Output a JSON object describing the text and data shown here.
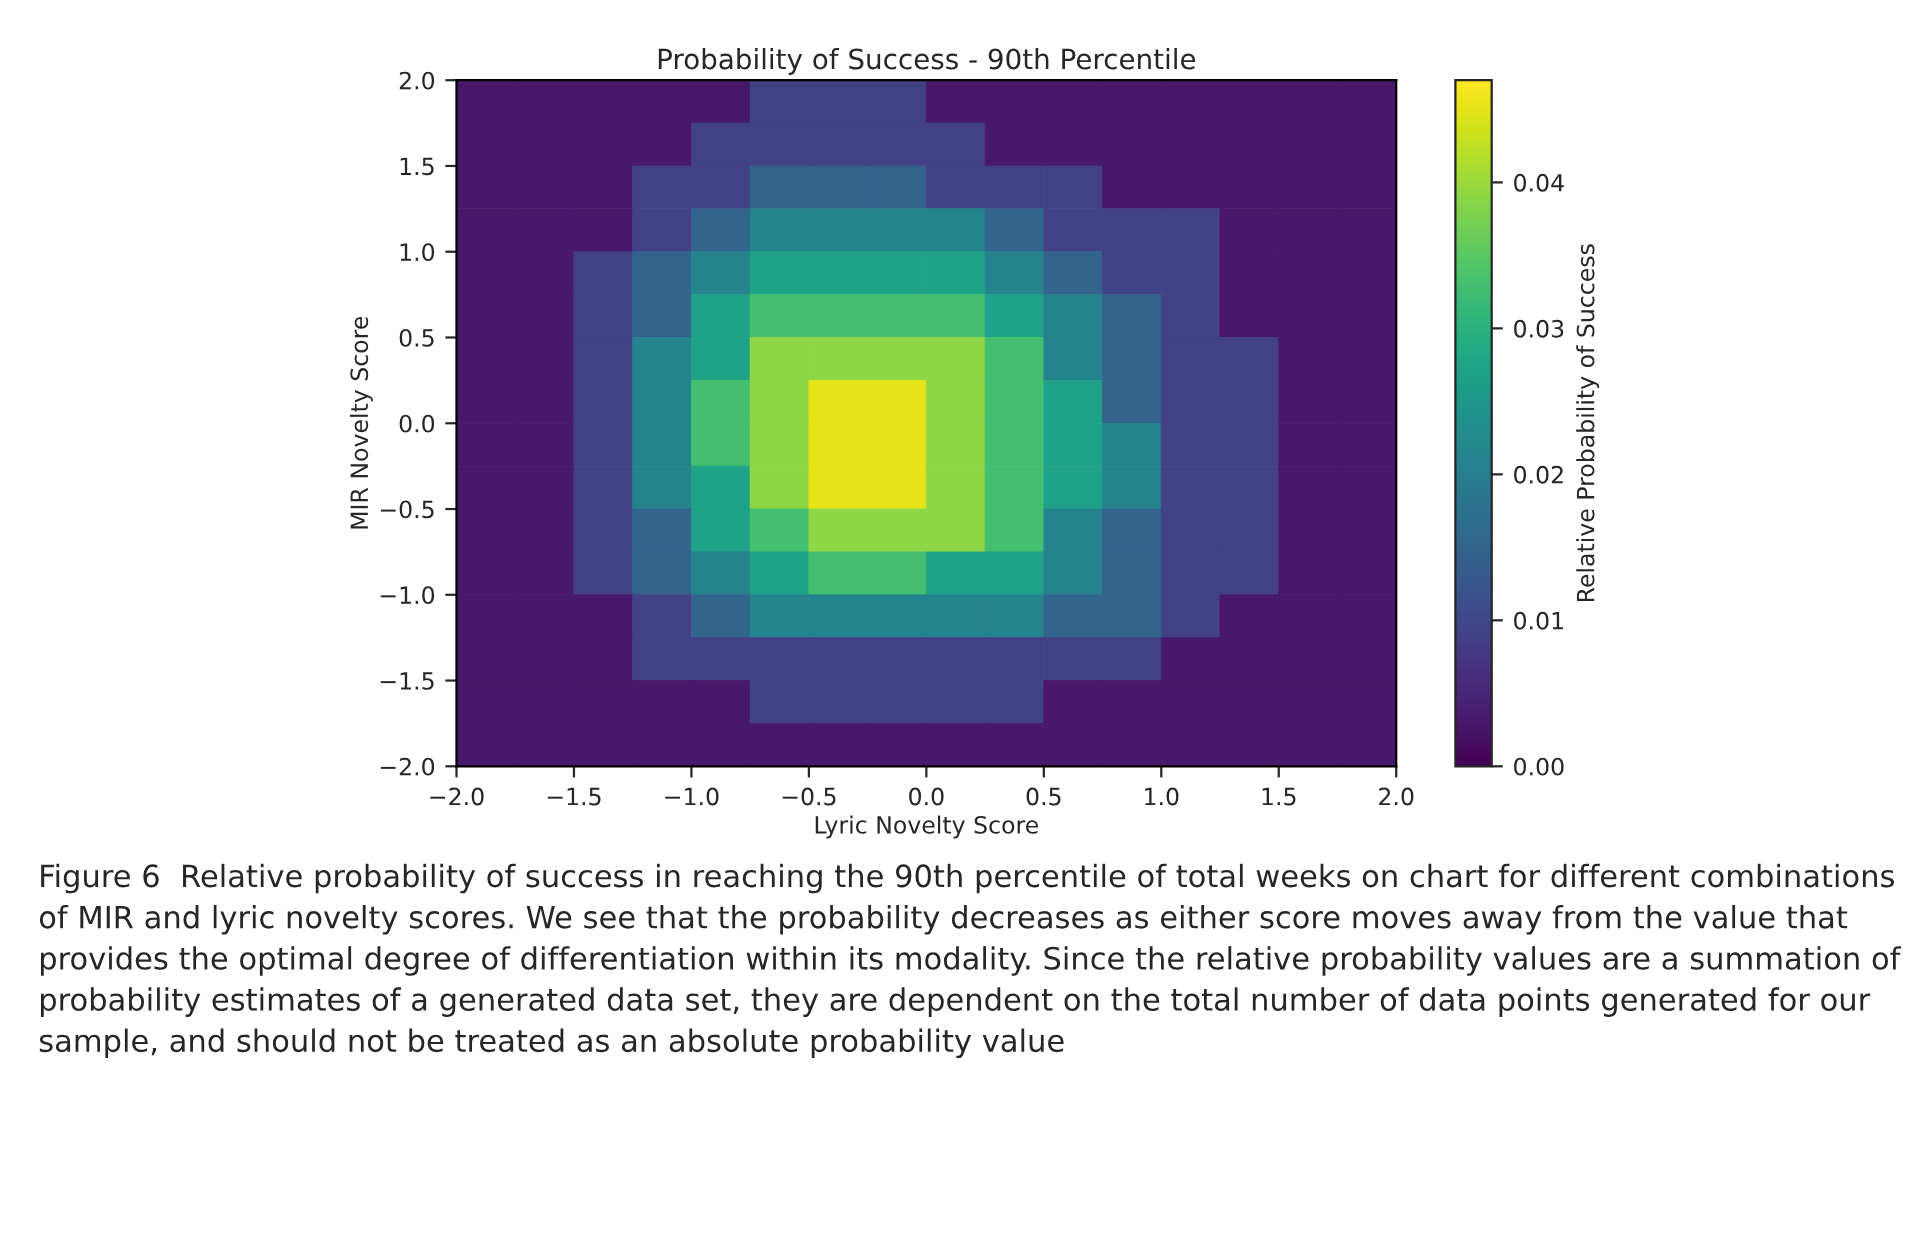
{
  "chart_data": {
    "type": "heatmap",
    "title": "Probability of Success - 90th Percentile",
    "xlabel": "Lyric Novelty Score",
    "ylabel": "MIR Novelty Score",
    "clabel": "Relative Probability of Success",
    "x": [
      -1.875,
      -1.625,
      -1.375,
      -1.125,
      -0.875,
      -0.625,
      -0.375,
      -0.125,
      0.125,
      0.375,
      0.625,
      0.875,
      1.125,
      1.375,
      1.625,
      1.875
    ],
    "y": [
      1.875,
      1.625,
      1.375,
      1.125,
      0.875,
      0.625,
      0.375,
      0.125,
      -0.125,
      -0.375,
      -0.625,
      -0.875,
      -1.125,
      -1.375,
      -1.625,
      -1.875
    ],
    "xlim": [
      -2,
      2
    ],
    "ylim": [
      -2,
      2
    ],
    "xticks": [
      {
        "value": -2,
        "label": "−2.0"
      },
      {
        "value": -1.5,
        "label": "−1.5"
      },
      {
        "value": -1,
        "label": "−1.0"
      },
      {
        "value": -0.5,
        "label": "−0.5"
      },
      {
        "value": 0,
        "label": "0.0"
      },
      {
        "value": 0.5,
        "label": "0.5"
      },
      {
        "value": 1,
        "label": "1.0"
      },
      {
        "value": 1.5,
        "label": "1.5"
      },
      {
        "value": 2,
        "label": "2.0"
      }
    ],
    "yticks": [
      {
        "value": -2,
        "label": "−2.0"
      },
      {
        "value": -1.5,
        "label": "−1.5"
      },
      {
        "value": -1,
        "label": "−1.0"
      },
      {
        "value": -0.5,
        "label": "−0.5"
      },
      {
        "value": 0,
        "label": "0.0"
      },
      {
        "value": 0.5,
        "label": "0.5"
      },
      {
        "value": 1,
        "label": "1.0"
      },
      {
        "value": 1.5,
        "label": "1.5"
      },
      {
        "value": 2,
        "label": "2.0"
      }
    ],
    "clim": [
      0,
      0.047
    ],
    "cticks": [
      {
        "value": 0,
        "label": "0.00"
      },
      {
        "value": 0.01,
        "label": "0.01"
      },
      {
        "value": 0.02,
        "label": "0.02"
      },
      {
        "value": 0.03,
        "label": "0.03"
      },
      {
        "value": 0.04,
        "label": "0.04"
      }
    ],
    "cells": [
      [
        0.003,
        0.003,
        0.003,
        0.003,
        0.003,
        0.009,
        0.009,
        0.009,
        0.003,
        0.003,
        0.003,
        0.003,
        0.003,
        0.003,
        0.003,
        0.003
      ],
      [
        0.003,
        0.003,
        0.003,
        0.003,
        0.009,
        0.009,
        0.009,
        0.009,
        0.009,
        0.003,
        0.003,
        0.003,
        0.003,
        0.003,
        0.003,
        0.003
      ],
      [
        0.003,
        0.003,
        0.003,
        0.009,
        0.009,
        0.015,
        0.015,
        0.015,
        0.009,
        0.009,
        0.009,
        0.003,
        0.003,
        0.003,
        0.003,
        0.003
      ],
      [
        0.003,
        0.003,
        0.003,
        0.009,
        0.015,
        0.021,
        0.021,
        0.021,
        0.021,
        0.015,
        0.009,
        0.009,
        0.009,
        0.003,
        0.003,
        0.003
      ],
      [
        0.003,
        0.003,
        0.009,
        0.015,
        0.021,
        0.027,
        0.027,
        0.027,
        0.027,
        0.021,
        0.015,
        0.009,
        0.009,
        0.003,
        0.003,
        0.003
      ],
      [
        0.003,
        0.003,
        0.009,
        0.015,
        0.027,
        0.033,
        0.033,
        0.033,
        0.033,
        0.027,
        0.021,
        0.015,
        0.009,
        0.003,
        0.003,
        0.003
      ],
      [
        0.003,
        0.003,
        0.009,
        0.021,
        0.027,
        0.039,
        0.039,
        0.039,
        0.039,
        0.033,
        0.021,
        0.015,
        0.009,
        0.009,
        0.003,
        0.003
      ],
      [
        0.003,
        0.003,
        0.009,
        0.021,
        0.033,
        0.039,
        0.045,
        0.045,
        0.039,
        0.033,
        0.027,
        0.015,
        0.009,
        0.009,
        0.003,
        0.003
      ],
      [
        0.003,
        0.003,
        0.009,
        0.021,
        0.033,
        0.039,
        0.045,
        0.045,
        0.039,
        0.033,
        0.027,
        0.021,
        0.009,
        0.009,
        0.003,
        0.003
      ],
      [
        0.003,
        0.003,
        0.009,
        0.021,
        0.027,
        0.039,
        0.045,
        0.045,
        0.039,
        0.033,
        0.027,
        0.021,
        0.009,
        0.009,
        0.003,
        0.003
      ],
      [
        0.003,
        0.003,
        0.009,
        0.015,
        0.027,
        0.033,
        0.039,
        0.039,
        0.039,
        0.033,
        0.021,
        0.015,
        0.009,
        0.009,
        0.003,
        0.003
      ],
      [
        0.003,
        0.003,
        0.009,
        0.015,
        0.021,
        0.027,
        0.033,
        0.033,
        0.027,
        0.027,
        0.021,
        0.015,
        0.009,
        0.009,
        0.003,
        0.003
      ],
      [
        0.003,
        0.003,
        0.003,
        0.009,
        0.015,
        0.021,
        0.021,
        0.021,
        0.021,
        0.021,
        0.015,
        0.015,
        0.009,
        0.003,
        0.003,
        0.003
      ],
      [
        0.003,
        0.003,
        0.003,
        0.009,
        0.009,
        0.009,
        0.009,
        0.009,
        0.009,
        0.009,
        0.009,
        0.009,
        0.003,
        0.003,
        0.003,
        0.003
      ],
      [
        0.003,
        0.003,
        0.003,
        0.003,
        0.003,
        0.009,
        0.009,
        0.009,
        0.009,
        0.009,
        0.003,
        0.003,
        0.003,
        0.003,
        0.003,
        0.003
      ],
      [
        0.003,
        0.003,
        0.003,
        0.003,
        0.003,
        0.003,
        0.003,
        0.003,
        0.003,
        0.003,
        0.003,
        0.003,
        0.003,
        0.003,
        0.003,
        0.003
      ]
    ],
    "annotations": [
      "Figure 6  Relative probability of success in reaching the 90th percentile of total weeks on chart for different combinations of MIR and lyric novelty scores. We see that the probability decreases as either score moves away from the value that provides the optimal degree of differentiation within its modality. Since the relative probability values are a summation of probability estimates of a generated data set, they are dependent on the total number of data points generated for our sample, and should not be treated as an absolute probability value"
    ]
  }
}
